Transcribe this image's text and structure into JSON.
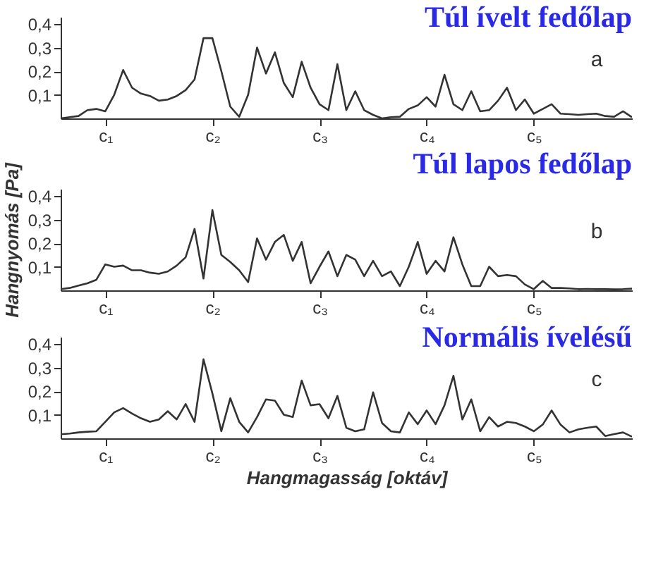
{
  "chart_data": [
    {
      "type": "line",
      "title": "Túl ívelt fedőlap",
      "annotations": [
        "a"
      ],
      "color": "#333333",
      "grid": false,
      "marker": "none",
      "line_style": "solid",
      "categories": [
        null,
        null,
        null,
        null,
        null,
        "c₁",
        null,
        null,
        null,
        null,
        null,
        null,
        null,
        null,
        null,
        null,
        null,
        "c₂",
        null,
        null,
        null,
        null,
        null,
        null,
        null,
        null,
        null,
        null,
        null,
        "c₃",
        null,
        null,
        null,
        null,
        null,
        null,
        null,
        null,
        null,
        null,
        null,
        "c₄",
        null,
        null,
        null,
        null,
        null,
        null,
        null,
        null,
        null,
        null,
        null,
        "c₅",
        null,
        null,
        null,
        null,
        null,
        null,
        null,
        null,
        null,
        null,
        null
      ],
      "values": [
        0,
        0.005,
        0.01,
        0.035,
        0.04,
        0.03,
        0.1,
        0.205,
        0.13,
        0.105,
        0.095,
        0.075,
        0.08,
        0.095,
        0.12,
        0.165,
        0.34,
        0.34,
        0.2,
        0.05,
        0.007,
        0.1,
        0.3,
        0.19,
        0.28,
        0.15,
        0.09,
        0.24,
        0.13,
        0.06,
        0.035,
        0.23,
        0.035,
        0.115,
        0.035,
        0.015,
        0,
        0.005,
        0.007,
        0.04,
        0.055,
        0.09,
        0.05,
        0.185,
        0.06,
        0.035,
        0.115,
        0.03,
        0.035,
        0.075,
        0.13,
        0.035,
        0.08,
        0.02,
        0.04,
        0.06,
        0.02,
        0.018,
        0.015,
        0.018,
        0.02,
        0.01,
        0.007,
        0.03,
        0.005
      ],
      "ylim": [
        0,
        0.43
      ],
      "yticks": [
        {
          "value": 0.1,
          "label": "0,1"
        },
        {
          "value": 0.2,
          "label": "0,2"
        },
        {
          "value": 0.3,
          "label": "0,3"
        },
        {
          "value": 0.4,
          "label": "0,4"
        }
      ]
    },
    {
      "type": "line",
      "title": "Túl lapos fedőlap",
      "ylabel": "Hangnyomás [Pa]",
      "annotations": [
        "b"
      ],
      "color": "#333333",
      "grid": false,
      "marker": "none",
      "line_style": "solid",
      "categories": [
        null,
        null,
        null,
        null,
        null,
        "c₁",
        null,
        null,
        null,
        null,
        null,
        null,
        null,
        null,
        null,
        null,
        null,
        "c₂",
        null,
        null,
        null,
        null,
        null,
        null,
        null,
        null,
        null,
        null,
        null,
        "c₃",
        null,
        null,
        null,
        null,
        null,
        null,
        null,
        null,
        null,
        null,
        null,
        "c₄",
        null,
        null,
        null,
        null,
        null,
        null,
        null,
        null,
        null,
        null,
        null,
        "c₅",
        null,
        null,
        null,
        null,
        null,
        null,
        null,
        null,
        null,
        null,
        null
      ],
      "values": [
        0.005,
        0.01,
        0.02,
        0.03,
        0.045,
        0.11,
        0.1,
        0.105,
        0.085,
        0.085,
        0.075,
        0.07,
        0.08,
        0.105,
        0.14,
        0.26,
        0.05,
        0.34,
        0.15,
        0.12,
        0.085,
        0.035,
        0.22,
        0.13,
        0.205,
        0.235,
        0.125,
        0.205,
        0.03,
        0.1,
        0.165,
        0.06,
        0.15,
        0.13,
        0.06,
        0.125,
        0.06,
        0.08,
        0.018,
        0.1,
        0.205,
        0.07,
        0.125,
        0.08,
        0.225,
        0.11,
        0.018,
        0.018,
        0.1,
        0.06,
        0.065,
        0.06,
        0.025,
        0.005,
        0.04,
        0.01,
        0.01,
        0.008,
        0.005,
        0.006,
        0.005,
        0.005,
        0.004,
        0.005,
        0.007
      ],
      "ylim": [
        0,
        0.43
      ],
      "yticks": [
        {
          "value": 0.1,
          "label": "0,1"
        },
        {
          "value": 0.2,
          "label": "0,2"
        },
        {
          "value": 0.3,
          "label": "0,3"
        },
        {
          "value": 0.4,
          "label": "0,4"
        }
      ]
    },
    {
      "type": "line",
      "title": "Normális ívelésű",
      "xlabel": "Hangmagasság [oktáv]",
      "annotations": [
        "c"
      ],
      "color": "#333333",
      "grid": false,
      "marker": "none",
      "line_style": "solid",
      "categories": [
        null,
        null,
        null,
        null,
        null,
        "c₁",
        null,
        null,
        null,
        null,
        null,
        null,
        null,
        null,
        null,
        null,
        null,
        "c₂",
        null,
        null,
        null,
        null,
        null,
        null,
        null,
        null,
        null,
        null,
        null,
        "c₃",
        null,
        null,
        null,
        null,
        null,
        null,
        null,
        null,
        null,
        null,
        null,
        "c₄",
        null,
        null,
        null,
        null,
        null,
        null,
        null,
        null,
        null,
        null,
        null,
        "c₅",
        null,
        null,
        null,
        null,
        null,
        null,
        null,
        null,
        null,
        null,
        null
      ],
      "values": [
        0.017,
        0.02,
        0.025,
        0.028,
        0.03,
        0.07,
        0.11,
        0.128,
        0.105,
        0.085,
        0.07,
        0.08,
        0.115,
        0.08,
        0.145,
        0.07,
        0.335,
        0.19,
        0.03,
        0.17,
        0.07,
        0.025,
        0.09,
        0.165,
        0.16,
        0.1,
        0.09,
        0.245,
        0.14,
        0.145,
        0.085,
        0.18,
        0.045,
        0.03,
        0.038,
        0.195,
        0.065,
        0.03,
        0.025,
        0.11,
        0.06,
        0.118,
        0.06,
        0.14,
        0.265,
        0.08,
        0.165,
        0.03,
        0.09,
        0.05,
        0.07,
        0.065,
        0.05,
        0.03,
        0.058,
        0.118,
        0.058,
        0.025,
        0.038,
        0.045,
        0.05,
        0.01,
        0.018,
        0.025,
        0.007
      ],
      "ylim": [
        0,
        0.43
      ],
      "yticks": [
        {
          "value": 0.1,
          "label": "0,1"
        },
        {
          "value": 0.2,
          "label": "0,2"
        },
        {
          "value": 0.3,
          "label": "0,3"
        },
        {
          "value": 0.4,
          "label": "0,4"
        }
      ]
    }
  ]
}
